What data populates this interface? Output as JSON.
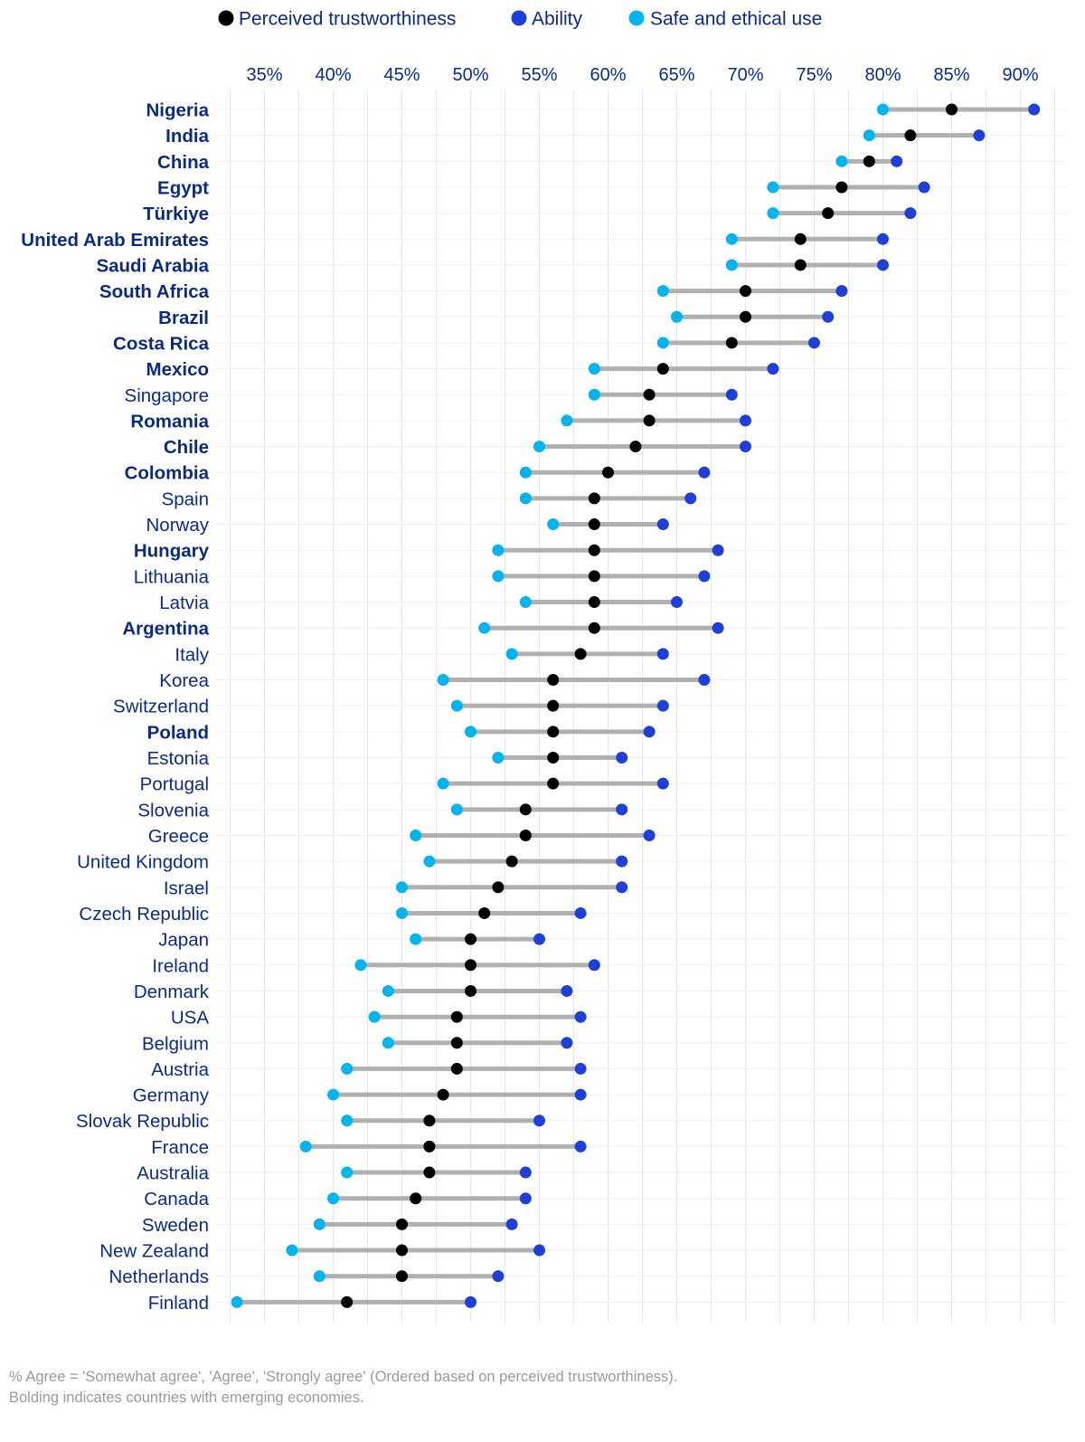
{
  "legend": [
    {
      "label": "Perceived trustworthiness",
      "color": "#000000"
    },
    {
      "label": "Ability",
      "color": "#1e3fd8"
    },
    {
      "label": "Safe and ethical use",
      "color": "#00b4ef"
    }
  ],
  "footnote_1": "% Agree = 'Somewhat agree', 'Agree', 'Strongly agree' (Ordered based on perceived trustworthiness).",
  "footnote_2": "Bolding indicates countries with emerging economies.",
  "colors": {
    "trust": "#000000",
    "ability": "#1e3fd8",
    "safe": "#00b4ef",
    "connector": "#b0b0b0",
    "grid": "#e6e6e6",
    "text": "#0a2b8a"
  },
  "chart_data": {
    "type": "dumbbell",
    "title": "",
    "xlabel": "",
    "ylabel": "",
    "xlim": [
      31,
      93
    ],
    "x_ticks": [
      35,
      40,
      45,
      50,
      55,
      60,
      65,
      70,
      75,
      80,
      85,
      90
    ],
    "x_tick_labels": [
      "35%",
      "40%",
      "45%",
      "50%",
      "55%",
      "60%",
      "65%",
      "70%",
      "75%",
      "80%",
      "85%",
      "90%"
    ],
    "x_axis_position": "top",
    "grid": true,
    "legend_position": "top",
    "series": [
      {
        "name": "Perceived trustworthiness",
        "key": "trust"
      },
      {
        "name": "Ability",
        "key": "ability"
      },
      {
        "name": "Safe and ethical use",
        "key": "safe"
      }
    ],
    "rows": [
      {
        "country": "Nigeria",
        "emerging": true,
        "trust": 85,
        "ability": 91,
        "safe": 80
      },
      {
        "country": "India",
        "emerging": true,
        "trust": 82,
        "ability": 87,
        "safe": 79
      },
      {
        "country": "China",
        "emerging": true,
        "trust": 79,
        "ability": 81,
        "safe": 77
      },
      {
        "country": "Egypt",
        "emerging": true,
        "trust": 77,
        "ability": 83,
        "safe": 72
      },
      {
        "country": "Türkiye",
        "emerging": true,
        "trust": 76,
        "ability": 82,
        "safe": 72
      },
      {
        "country": "United Arab Emirates",
        "emerging": true,
        "trust": 74,
        "ability": 80,
        "safe": 69
      },
      {
        "country": "Saudi Arabia",
        "emerging": true,
        "trust": 74,
        "ability": 80,
        "safe": 69
      },
      {
        "country": "South Africa",
        "emerging": true,
        "trust": 70,
        "ability": 77,
        "safe": 64
      },
      {
        "country": "Brazil",
        "emerging": true,
        "trust": 70,
        "ability": 76,
        "safe": 65
      },
      {
        "country": "Costa Rica",
        "emerging": true,
        "trust": 69,
        "ability": 75,
        "safe": 64
      },
      {
        "country": "Mexico",
        "emerging": true,
        "trust": 64,
        "ability": 72,
        "safe": 59
      },
      {
        "country": "Singapore",
        "emerging": false,
        "trust": 63,
        "ability": 69,
        "safe": 59
      },
      {
        "country": "Romania",
        "emerging": true,
        "trust": 63,
        "ability": 70,
        "safe": 57
      },
      {
        "country": "Chile",
        "emerging": true,
        "trust": 62,
        "ability": 70,
        "safe": 55
      },
      {
        "country": "Colombia",
        "emerging": true,
        "trust": 60,
        "ability": 67,
        "safe": 54
      },
      {
        "country": "Spain",
        "emerging": false,
        "trust": 59,
        "ability": 66,
        "safe": 54
      },
      {
        "country": "Norway",
        "emerging": false,
        "trust": 59,
        "ability": 64,
        "safe": 56
      },
      {
        "country": "Hungary",
        "emerging": true,
        "trust": 59,
        "ability": 68,
        "safe": 52
      },
      {
        "country": "Lithuania",
        "emerging": false,
        "trust": 59,
        "ability": 67,
        "safe": 52
      },
      {
        "country": "Latvia",
        "emerging": false,
        "trust": 59,
        "ability": 65,
        "safe": 54
      },
      {
        "country": "Argentina",
        "emerging": true,
        "trust": 59,
        "ability": 68,
        "safe": 51
      },
      {
        "country": "Italy",
        "emerging": false,
        "trust": 58,
        "ability": 64,
        "safe": 53
      },
      {
        "country": "Korea",
        "emerging": false,
        "trust": 56,
        "ability": 67,
        "safe": 48
      },
      {
        "country": "Switzerland",
        "emerging": false,
        "trust": 56,
        "ability": 64,
        "safe": 49
      },
      {
        "country": "Poland",
        "emerging": true,
        "trust": 56,
        "ability": 63,
        "safe": 50
      },
      {
        "country": "Estonia",
        "emerging": false,
        "trust": 56,
        "ability": 61,
        "safe": 52
      },
      {
        "country": "Portugal",
        "emerging": false,
        "trust": 56,
        "ability": 64,
        "safe": 48
      },
      {
        "country": "Slovenia",
        "emerging": false,
        "trust": 54,
        "ability": 61,
        "safe": 49
      },
      {
        "country": "Greece",
        "emerging": false,
        "trust": 54,
        "ability": 63,
        "safe": 46
      },
      {
        "country": "United Kingdom",
        "emerging": false,
        "trust": 53,
        "ability": 61,
        "safe": 47
      },
      {
        "country": "Israel",
        "emerging": false,
        "trust": 52,
        "ability": 61,
        "safe": 45
      },
      {
        "country": "Czech Republic",
        "emerging": false,
        "trust": 51,
        "ability": 58,
        "safe": 45
      },
      {
        "country": "Japan",
        "emerging": false,
        "trust": 50,
        "ability": 55,
        "safe": 46
      },
      {
        "country": "Ireland",
        "emerging": false,
        "trust": 50,
        "ability": 59,
        "safe": 42
      },
      {
        "country": "Denmark",
        "emerging": false,
        "trust": 50,
        "ability": 57,
        "safe": 44
      },
      {
        "country": "USA",
        "emerging": false,
        "trust": 49,
        "ability": 58,
        "safe": 43
      },
      {
        "country": "Belgium",
        "emerging": false,
        "trust": 49,
        "ability": 57,
        "safe": 44
      },
      {
        "country": "Austria",
        "emerging": false,
        "trust": 49,
        "ability": 58,
        "safe": 41
      },
      {
        "country": "Germany",
        "emerging": false,
        "trust": 48,
        "ability": 58,
        "safe": 40
      },
      {
        "country": "Slovak Republic",
        "emerging": false,
        "trust": 47,
        "ability": 55,
        "safe": 41
      },
      {
        "country": "France",
        "emerging": false,
        "trust": 47,
        "ability": 58,
        "safe": 38
      },
      {
        "country": "Australia",
        "emerging": false,
        "trust": 47,
        "ability": 54,
        "safe": 41
      },
      {
        "country": "Canada",
        "emerging": false,
        "trust": 46,
        "ability": 54,
        "safe": 40
      },
      {
        "country": "Sweden",
        "emerging": false,
        "trust": 45,
        "ability": 53,
        "safe": 39
      },
      {
        "country": "New Zealand",
        "emerging": false,
        "trust": 45,
        "ability": 55,
        "safe": 37
      },
      {
        "country": "Netherlands",
        "emerging": false,
        "trust": 45,
        "ability": 52,
        "safe": 39
      },
      {
        "country": "Finland",
        "emerging": false,
        "trust": 41,
        "ability": 50,
        "safe": 33
      }
    ]
  }
}
